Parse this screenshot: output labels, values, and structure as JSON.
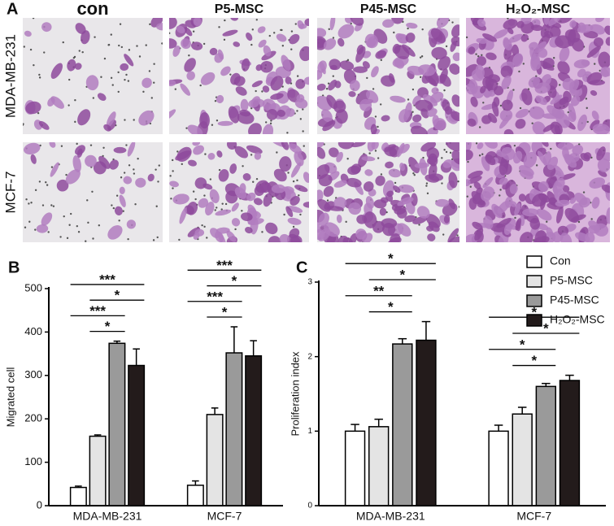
{
  "panel_a": {
    "label": "A",
    "columns": [
      "con",
      "P5-MSC",
      "P45-MSC",
      "H₂O₂-MSC"
    ],
    "rows": [
      "MDA-MB-231",
      "MCF-7"
    ]
  },
  "chart_data": [
    {
      "type": "bar",
      "panel_label": "B",
      "y_label": "Migrated cell",
      "categories": [
        "MDA-MB-231",
        "MCF-7"
      ],
      "series": [
        {
          "color": "#ffffff",
          "values": [
            42,
            47
          ],
          "errors": [
            3,
            10
          ]
        },
        {
          "color": "#e4e4e4",
          "values": [
            160,
            210
          ],
          "errors": [
            3,
            15
          ]
        },
        {
          "color": "#9a9a9a",
          "values": [
            374,
            352
          ],
          "errors": [
            5,
            60
          ]
        },
        {
          "color": "#231b1b",
          "values": [
            323,
            345
          ],
          "errors": [
            38,
            35
          ]
        }
      ],
      "significance": [
        [
          {
            "pair": [
              0,
              3
            ],
            "label": "***"
          },
          {
            "pair": [
              1,
              3
            ],
            "label": "*"
          },
          {
            "pair": [
              0,
              2
            ],
            "label": "***"
          },
          {
            "pair": [
              1,
              2
            ],
            "label": "*"
          }
        ],
        [
          {
            "pair": [
              0,
              3
            ],
            "label": "***"
          },
          {
            "pair": [
              1,
              3
            ],
            "label": "*"
          },
          {
            "pair": [
              0,
              2
            ],
            "label": "***"
          },
          {
            "pair": [
              1,
              2
            ],
            "label": "*"
          }
        ]
      ],
      "ylim": [
        0,
        500
      ],
      "yticks": [
        0,
        100,
        200,
        300,
        400,
        500
      ]
    },
    {
      "type": "bar",
      "panel_label": "C",
      "y_label": "Proliferation index",
      "categories": [
        "MDA-MB-231",
        "MCF-7"
      ],
      "series": [
        {
          "name": "Con",
          "color": "#ffffff",
          "values": [
            1.0,
            1.0
          ],
          "errors": [
            0.09,
            0.08
          ]
        },
        {
          "name": "P5-MSC",
          "color": "#e4e4e4",
          "values": [
            1.06,
            1.23
          ],
          "errors": [
            0.1,
            0.09
          ]
        },
        {
          "name": "P45-MSC",
          "color": "#9a9a9a",
          "values": [
            2.17,
            1.6
          ],
          "errors": [
            0.07,
            0.04
          ]
        },
        {
          "name": "H₂O₂-MSC",
          "color": "#231b1b",
          "values": [
            2.22,
            1.68
          ],
          "errors": [
            0.25,
            0.07
          ]
        }
      ],
      "significance": [
        [
          {
            "pair": [
              0,
              3
            ],
            "label": "*"
          },
          {
            "pair": [
              1,
              3
            ],
            "label": "*"
          },
          {
            "pair": [
              0,
              2
            ],
            "label": "**"
          },
          {
            "pair": [
              1,
              2
            ],
            "label": "*"
          }
        ],
        [
          {
            "pair": [
              0,
              3
            ],
            "label": "*"
          },
          {
            "pair": [
              1,
              3
            ],
            "label": "*"
          },
          {
            "pair": [
              0,
              2
            ],
            "label": "*"
          },
          {
            "pair": [
              1,
              2
            ],
            "label": "*"
          }
        ]
      ],
      "legend": "upper right",
      "ylim": [
        0,
        3
      ],
      "yticks": [
        0,
        1,
        2,
        3
      ]
    }
  ]
}
